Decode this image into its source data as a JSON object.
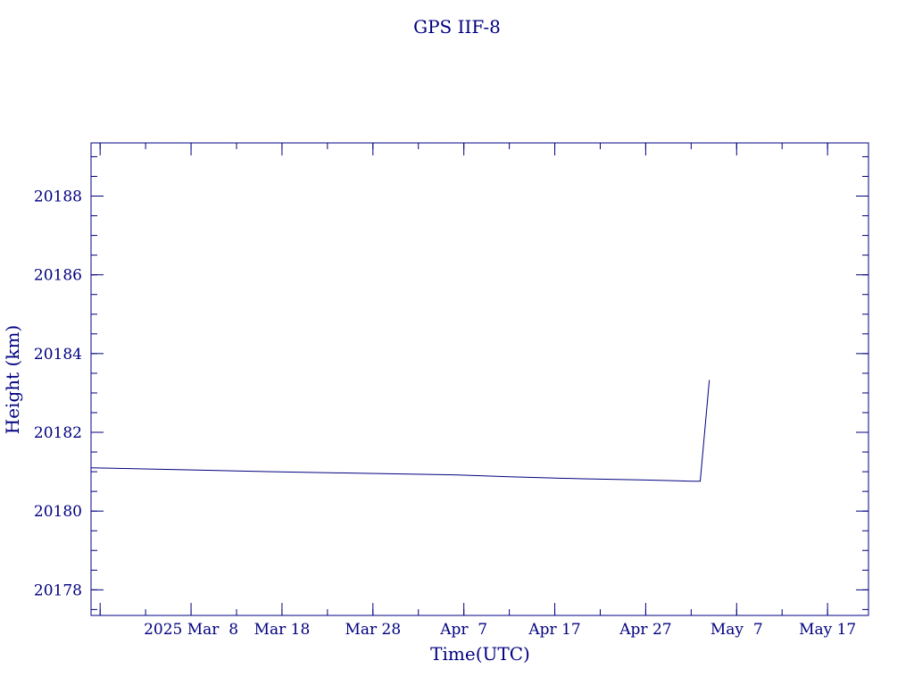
{
  "colors": {
    "plot": "#000080",
    "background": "#ffffff"
  },
  "chart_data": {
    "type": "line",
    "title": "GPS IIF-8",
    "xlabel": "Time(UTC)",
    "ylabel": "Height (km)",
    "xlim": [
      "2025-02-25T00:00",
      "2025-05-21T12:00"
    ],
    "ylim": [
      20177.35,
      20189.35
    ],
    "x_tick_values": [
      "2025-02-26",
      "2025-03-08",
      "2025-03-18",
      "2025-03-28",
      "2025-04-07",
      "2025-04-17",
      "2025-04-27",
      "2025-05-07",
      "2025-05-17"
    ],
    "x_tick_labels": [
      "2025 Mar  8",
      "Mar 18",
      "Mar 28",
      "Apr  7",
      "Apr 17",
      "Apr 27",
      "May  7",
      "May 17"
    ],
    "x_tick_label_values": [
      "2025-03-08",
      "2025-03-18",
      "2025-03-28",
      "2025-04-07",
      "2025-04-17",
      "2025-04-27",
      "2025-05-07",
      "2025-05-17"
    ],
    "y_ticks": [
      20178,
      20180,
      20182,
      20184,
      20186,
      20188
    ],
    "y_tick_labels": [
      "20178",
      "20180",
      "20182",
      "20184",
      "20186",
      "20188"
    ],
    "y_minor_step": 0.5,
    "x_minor_step_days": 5,
    "grid": false,
    "series": [
      {
        "points": [
          [
            "2025-02-25T00:00",
            20181.1
          ],
          [
            "2025-03-07T00:00",
            20181.05
          ],
          [
            "2025-03-17T00:00",
            20181.0
          ],
          [
            "2025-03-27T00:00",
            20180.96
          ],
          [
            "2025-04-06T00:00",
            20180.92
          ],
          [
            "2025-04-12T00:00",
            20180.87
          ],
          [
            "2025-04-20T00:00",
            20180.82
          ],
          [
            "2025-04-27T00:00",
            20180.79
          ],
          [
            "2025-05-02T00:00",
            20180.76
          ],
          [
            "2025-05-03T00:00",
            20180.76
          ],
          [
            "2025-05-04T00:00",
            20183.33
          ]
        ]
      }
    ]
  }
}
